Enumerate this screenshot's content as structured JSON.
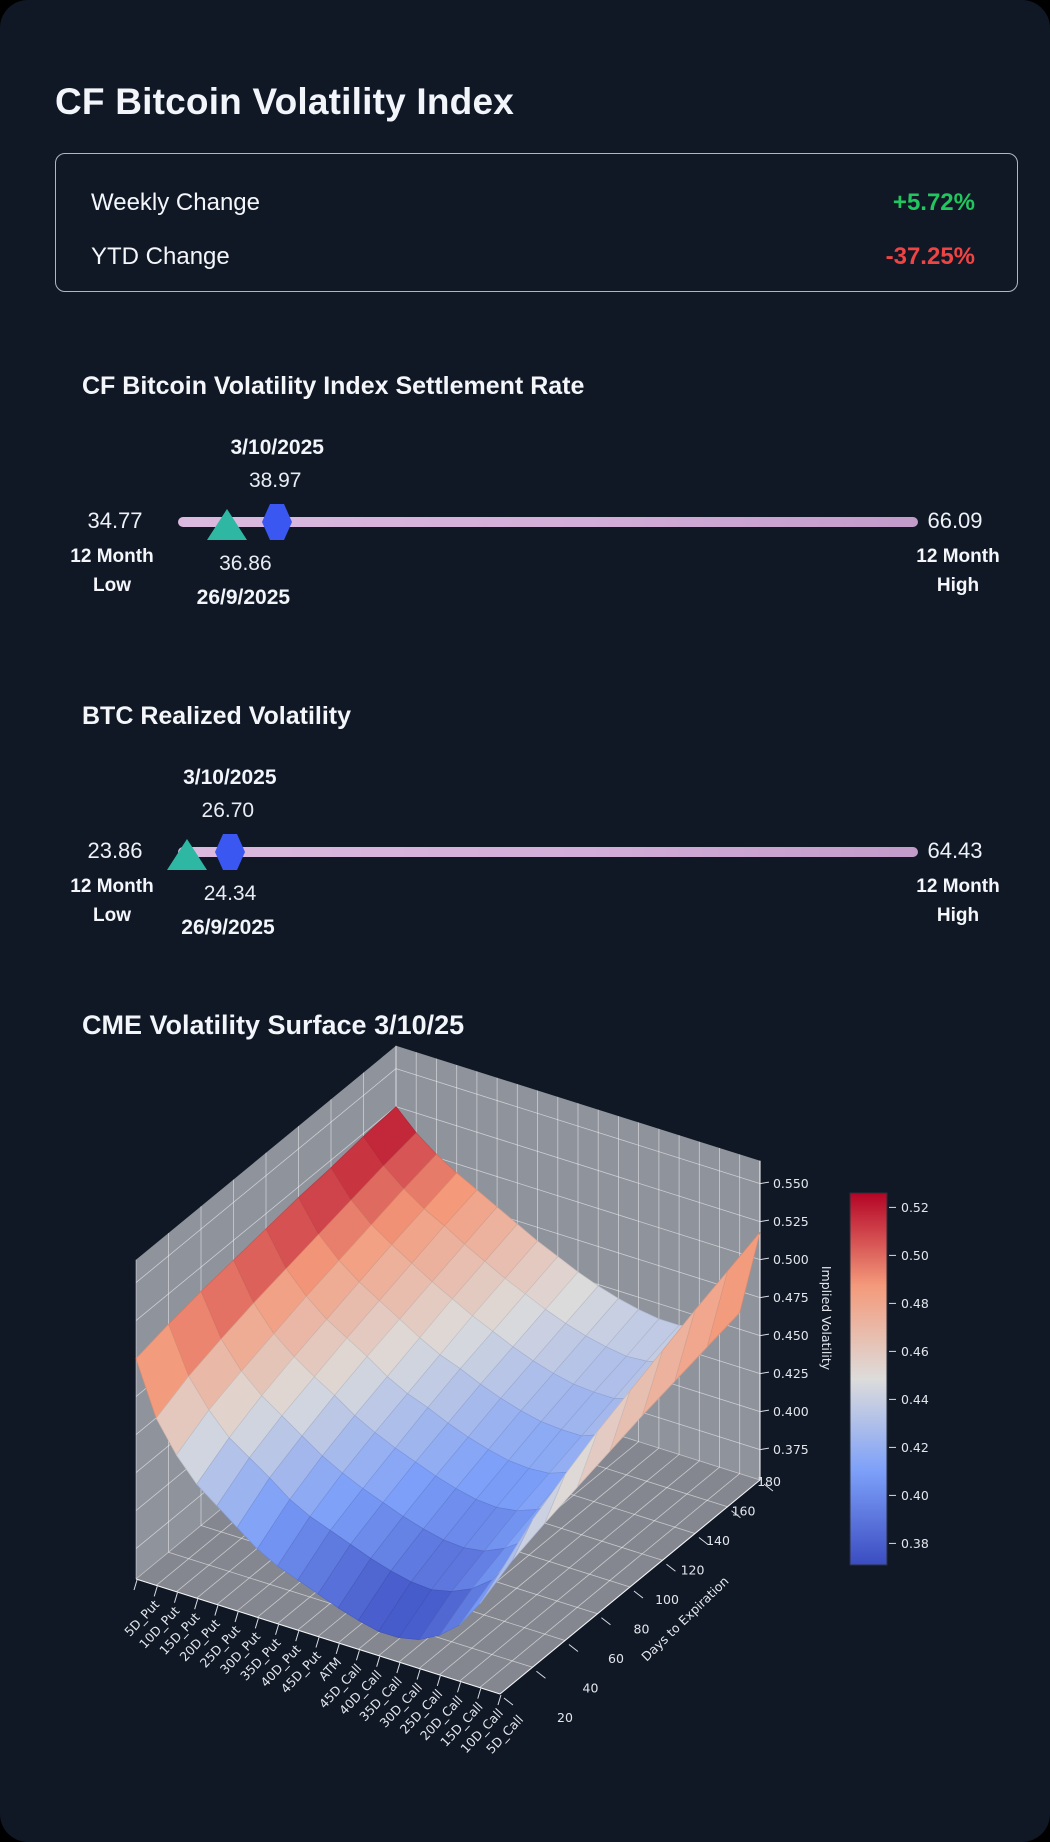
{
  "page": {
    "title": "CF Bitcoin Volatility Index"
  },
  "stats": {
    "rows": [
      {
        "label": "Weekly Change",
        "value": "+5.72%",
        "color": "#22c55e"
      },
      {
        "label": "YTD Change",
        "value": "-37.25%",
        "color": "#ef4444"
      }
    ]
  },
  "sliders": [
    {
      "title": "CF Bitcoin Volatility Index Settlement Rate",
      "low": "34.77",
      "high": "66.09",
      "low_label_1": "12 Month",
      "low_label_2": "Low",
      "high_label_1": "12 Month",
      "high_label_2": "High",
      "current": {
        "date": "3/10/2025",
        "value": "38.97"
      },
      "previous": {
        "date": "26/9/2025",
        "value": "36.86"
      }
    },
    {
      "title": "BTC Realized Volatility",
      "low": "23.86",
      "high": "64.43",
      "low_label_1": "12 Month",
      "low_label_2": "Low",
      "high_label_1": "12 Month",
      "high_label_2": "High",
      "current": {
        "date": "3/10/2025",
        "value": "26.70"
      },
      "previous": {
        "date": "26/9/2025",
        "value": "24.34"
      }
    }
  ],
  "colors": {
    "positive": "#22c55e",
    "negative": "#ef4444",
    "bar_start": "#dcbadf",
    "bar_end": "#c39bca",
    "triangle_marker": "#2eb8a3",
    "hexagon_marker": "#3a57f2",
    "wall": "#8f939c",
    "floor": "#84878f"
  },
  "chart_data": {
    "type": "surface",
    "title": "CME Volatility Surface 3/10/25",
    "xlabel": "",
    "ylabel": "Days to Expiration",
    "zlabel": "Implied Volatility",
    "colormap": "coolwarm",
    "x_categories": [
      "5D_Put",
      "10D_Put",
      "15D_Put",
      "20D_Put",
      "25D_Put",
      "30D_Put",
      "35D_Put",
      "40D_Put",
      "45D_Put",
      "ATM",
      "45D_Call",
      "40D_Call",
      "35D_Call",
      "30D_Call",
      "25D_Call",
      "20D_Call",
      "15D_Call",
      "10D_Call",
      "5D_Call"
    ],
    "y_days": [
      20,
      40,
      60,
      80,
      100,
      120,
      140,
      160,
      180
    ],
    "z_ticks": [
      "0.375",
      "0.400",
      "0.425",
      "0.450",
      "0.475",
      "0.500",
      "0.525",
      "0.550"
    ],
    "zlim": [
      0.355,
      0.565
    ],
    "colorbar_ticks": [
      "0.52",
      "0.50",
      "0.48",
      "0.46",
      "0.44",
      "0.42",
      "0.40",
      "0.38"
    ],
    "vmin": 0.371,
    "vmax": 0.526,
    "implied_vol_grid": [
      [
        0.5,
        0.465,
        0.445,
        0.43,
        0.42,
        0.41,
        0.4,
        0.393,
        0.388,
        0.383,
        0.378,
        0.374,
        0.371,
        0.371,
        0.374,
        0.381,
        0.392,
        0.41,
        0.435
      ],
      [
        0.505,
        0.475,
        0.457,
        0.443,
        0.434,
        0.425,
        0.415,
        0.408,
        0.403,
        0.398,
        0.393,
        0.389,
        0.386,
        0.385,
        0.388,
        0.394,
        0.404,
        0.421,
        0.452
      ],
      [
        0.509,
        0.482,
        0.465,
        0.453,
        0.444,
        0.435,
        0.426,
        0.419,
        0.413,
        0.408,
        0.403,
        0.399,
        0.396,
        0.395,
        0.397,
        0.403,
        0.412,
        0.428,
        0.464
      ],
      [
        0.512,
        0.488,
        0.472,
        0.461,
        0.452,
        0.444,
        0.435,
        0.428,
        0.422,
        0.417,
        0.412,
        0.408,
        0.405,
        0.404,
        0.406,
        0.411,
        0.419,
        0.434,
        0.475
      ],
      [
        0.515,
        0.493,
        0.479,
        0.468,
        0.46,
        0.452,
        0.443,
        0.436,
        0.431,
        0.425,
        0.42,
        0.416,
        0.413,
        0.412,
        0.413,
        0.418,
        0.426,
        0.44,
        0.484
      ],
      [
        0.518,
        0.498,
        0.485,
        0.475,
        0.467,
        0.459,
        0.451,
        0.444,
        0.439,
        0.433,
        0.428,
        0.424,
        0.421,
        0.42,
        0.42,
        0.425,
        0.432,
        0.446,
        0.493
      ],
      [
        0.52,
        0.503,
        0.491,
        0.482,
        0.474,
        0.466,
        0.459,
        0.452,
        0.446,
        0.44,
        0.435,
        0.431,
        0.428,
        0.427,
        0.427,
        0.431,
        0.438,
        0.451,
        0.502
      ],
      [
        0.523,
        0.508,
        0.497,
        0.488,
        0.481,
        0.473,
        0.466,
        0.459,
        0.453,
        0.447,
        0.442,
        0.438,
        0.435,
        0.433,
        0.434,
        0.437,
        0.444,
        0.456,
        0.51
      ],
      [
        0.525,
        0.512,
        0.502,
        0.494,
        0.487,
        0.48,
        0.473,
        0.466,
        0.46,
        0.454,
        0.449,
        0.445,
        0.442,
        0.44,
        0.44,
        0.443,
        0.449,
        0.461,
        0.518
      ]
    ]
  }
}
